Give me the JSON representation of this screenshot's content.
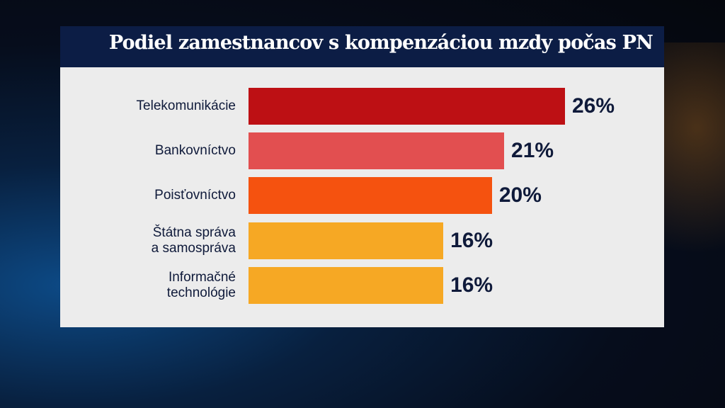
{
  "chart_data": {
    "type": "bar",
    "orientation": "horizontal",
    "title": "Podiel zamestnancov s kompenzáciou mzdy počas PN",
    "categories": [
      "Telekomunikácie",
      "Bankovníctvo",
      "Poisťovníctvo",
      "Štátna správa a samospráva",
      "Informačné technológie"
    ],
    "category_lines": [
      [
        "Telekomunikácie"
      ],
      [
        "Bankovníctvo"
      ],
      [
        "Poisťovníctvo"
      ],
      [
        "Štátna správa",
        "a samospráva"
      ],
      [
        "Informačné",
        "technológie"
      ]
    ],
    "values": [
      26,
      21,
      20,
      16,
      16
    ],
    "value_labels": [
      "26%",
      "21%",
      "20%",
      "16%",
      "16%"
    ],
    "colors": [
      "#bd1014",
      "#e24f50",
      "#f5520f",
      "#f6a824",
      "#f6a824"
    ],
    "xlabel": "",
    "ylabel": "",
    "xlim": [
      0,
      26
    ],
    "grid": false
  }
}
